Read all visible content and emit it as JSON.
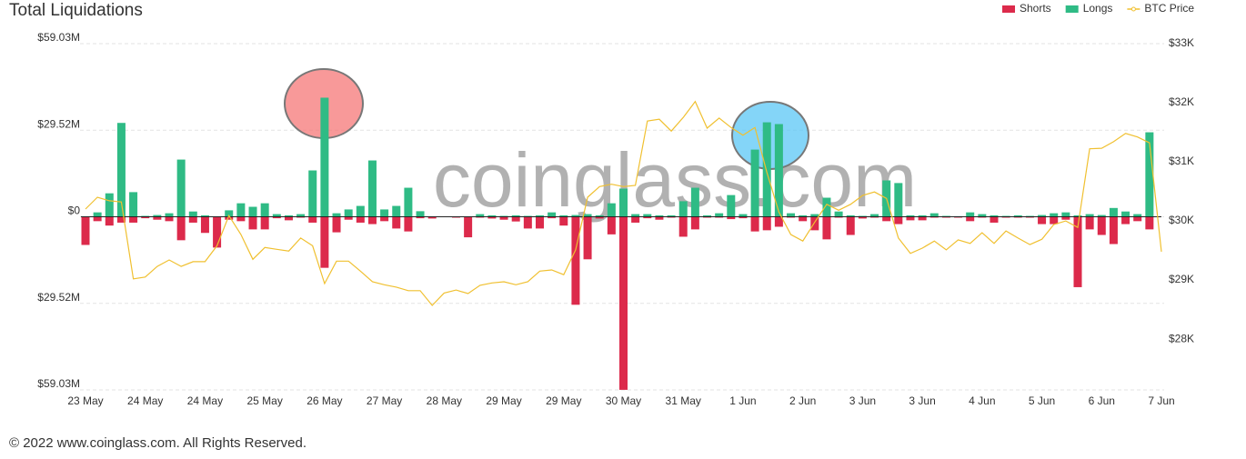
{
  "chart_data": {
    "type": "bar",
    "title": "Total Liquidations",
    "watermark": "coinglass.com",
    "footer": "© 2022 www.coinglass.com. All Rights Reserved.",
    "categories": [
      "23 May",
      null,
      null,
      null,
      null,
      "24 May",
      null,
      null,
      null,
      null,
      "24 May",
      null,
      null,
      null,
      null,
      "25 May",
      null,
      null,
      null,
      null,
      "26 May",
      null,
      null,
      null,
      null,
      "27 May",
      null,
      null,
      null,
      null,
      "28 May",
      null,
      null,
      null,
      null,
      "29 May",
      null,
      null,
      null,
      null,
      "29 May",
      null,
      null,
      null,
      null,
      "30 May",
      null,
      null,
      null,
      null,
      "31 May",
      null,
      null,
      null,
      null,
      "1 Jun",
      null,
      null,
      null,
      null,
      "2 Jun",
      null,
      null,
      null,
      null,
      "3 Jun",
      null,
      null,
      null,
      null,
      "3 Jun",
      null,
      null,
      null,
      null,
      "4 Jun",
      null,
      null,
      null,
      null,
      "5 Jun",
      null,
      null,
      null,
      null,
      "6 Jun",
      null,
      null,
      null,
      null,
      "7 Jun"
    ],
    "series": [
      {
        "name": "Shorts",
        "color": "#dc2a4b",
        "values": [
          -9.6,
          -1.5,
          -3,
          -2,
          -2,
          -0.5,
          -1,
          -1.5,
          -8,
          -2,
          -5.5,
          -10.5,
          -1,
          -1.5,
          -4.3,
          -4.3,
          -0.5,
          -1.2,
          -0.3,
          -2,
          -17.4,
          -5.3,
          -1,
          -2,
          -2.5,
          -1.5,
          -4,
          -5,
          -0.5,
          -0.6,
          0,
          -0.3,
          -7,
          -0.3,
          -0.6,
          -1,
          -1.6,
          -4,
          -4,
          -0.5,
          -3,
          -30,
          -14.5,
          -0.6,
          -6,
          -59,
          -2,
          -0.5,
          -1,
          -0.3,
          -6.8,
          -4.3,
          -0.3,
          -0.3,
          -0.8,
          -0.5,
          -5,
          -4.6,
          -3.4,
          -0.3,
          -1.5,
          -4.6,
          -7.7,
          -0.3,
          -6.2,
          -0.6,
          -0.3,
          -1.5,
          -2.5,
          -1.2,
          -1.2,
          -0.3,
          -0.3,
          -0.3,
          -1.5,
          -0.3,
          -2,
          -0.3,
          -0.3,
          -0.3,
          -2.5,
          -2.5,
          -1,
          -24,
          -4.3,
          -6.2,
          -9.3,
          -2.5,
          -1.5,
          -4.3,
          null
        ]
      },
      {
        "name": "Longs",
        "color": "#2fbb85",
        "values": [
          0,
          1.5,
          8,
          32,
          8.4,
          0.3,
          0.6,
          1.2,
          19.5,
          1.8,
          0.5,
          0,
          2.2,
          4.6,
          3.4,
          4.6,
          0.9,
          0.5,
          0.9,
          15.8,
          40.6,
          1.2,
          2.5,
          3.7,
          19.2,
          2.5,
          3.7,
          9.9,
          1.9,
          0,
          0,
          0,
          0,
          0.9,
          0.5,
          0.3,
          0.5,
          0.3,
          0.5,
          1.5,
          0.5,
          0.6,
          0.9,
          0.5,
          4.6,
          9.6,
          0.9,
          0.9,
          0.5,
          0.5,
          5.3,
          9.9,
          0.5,
          1.2,
          7.4,
          0.9,
          22.9,
          32.2,
          31.6,
          1.2,
          0.5,
          0.9,
          6.5,
          1.8,
          0.5,
          0.3,
          0.9,
          12.4,
          11.5,
          0.5,
          0.5,
          1.2,
          0.3,
          0.2,
          1.5,
          0.9,
          0.5,
          0.3,
          0.5,
          0.3,
          0.6,
          1.2,
          1.5,
          0.5,
          0.9,
          0.6,
          3,
          1.8,
          0.9,
          28.8,
          null
        ]
      },
      {
        "name": "BTC Price",
        "color": "#f0c030",
        "axis": "y2",
        "values": [
          30.2,
          30.4,
          30.34,
          30.32,
          29.02,
          29.05,
          29.23,
          29.34,
          29.23,
          29.31,
          29.31,
          29.58,
          30.09,
          29.77,
          29.35,
          29.55,
          29.52,
          29.49,
          29.71,
          29.58,
          28.94,
          29.32,
          29.32,
          29.15,
          28.97,
          28.92,
          28.88,
          28.82,
          28.82,
          28.57,
          28.78,
          28.83,
          28.77,
          28.91,
          28.95,
          28.97,
          28.92,
          28.97,
          29.15,
          29.17,
          29.09,
          29.51,
          30.4,
          30.58,
          30.62,
          30.58,
          30.6,
          31.69,
          31.72,
          31.52,
          31.75,
          32.02,
          31.57,
          31.74,
          31.58,
          31.45,
          31.58,
          30.82,
          30.15,
          29.77,
          29.66,
          29.98,
          30.28,
          30.18,
          30.28,
          30.43,
          30.49,
          30.38,
          29.71,
          29.45,
          29.54,
          29.66,
          29.51,
          29.68,
          29.62,
          29.8,
          29.62,
          29.83,
          29.71,
          29.6,
          29.69,
          29.94,
          30,
          29.89,
          31.22,
          31.23,
          31.34,
          31.48,
          31.42,
          31.32,
          29.48
        ]
      }
    ],
    "ylim": [
      -59.03,
      59.03
    ],
    "yticks": [
      {
        "value": -59.03,
        "label": "$59.03M"
      },
      {
        "value": -29.52,
        "label": "$29.52M"
      },
      {
        "value": 0,
        "label": "$0"
      },
      {
        "value": 29.52,
        "label": "$29.52M"
      },
      {
        "value": 59.03,
        "label": "$59.03M"
      }
    ],
    "y2lim": [
      27.14,
      33
    ],
    "y2ticks": [
      {
        "value": 28,
        "label": "$28K"
      },
      {
        "value": 29,
        "label": "$29K"
      },
      {
        "value": 30,
        "label": "$30K"
      },
      {
        "value": 31,
        "label": "$31K"
      },
      {
        "value": 32,
        "label": "$32K"
      },
      {
        "value": 33,
        "label": "$33K"
      }
    ],
    "grid": true
  }
}
